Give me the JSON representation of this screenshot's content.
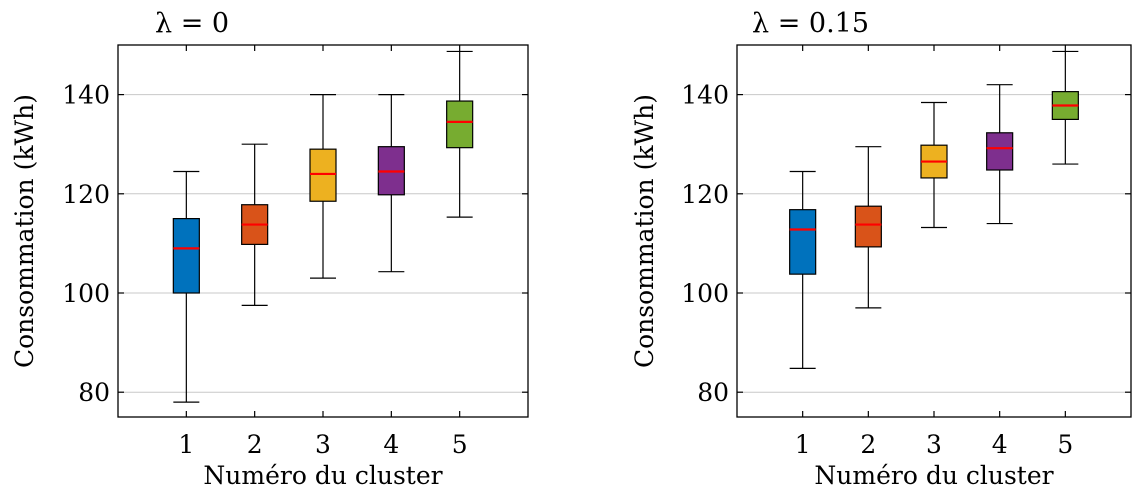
{
  "chart_data": [
    {
      "type": "box",
      "title": "λ = 0",
      "xlabel": "Numéro du cluster",
      "ylabel": "Consommation (kWh)",
      "categories": [
        "1",
        "2",
        "3",
        "4",
        "5"
      ],
      "ylim": [
        75,
        150
      ],
      "yticks": [
        80,
        100,
        120,
        140
      ],
      "grid": "horizontal",
      "colors": [
        "#0072BD",
        "#D95319",
        "#EDB120",
        "#7E2F8E",
        "#77AC30"
      ],
      "median_color": "#FF0000",
      "boxes": [
        {
          "min": 78,
          "q1": 100,
          "median": 109,
          "q3": 115,
          "max": 124.5
        },
        {
          "min": 97.5,
          "q1": 109.8,
          "median": 113.8,
          "q3": 117.8,
          "max": 130
        },
        {
          "min": 103,
          "q1": 118.5,
          "median": 124,
          "q3": 129,
          "max": 140
        },
        {
          "min": 104.3,
          "q1": 119.8,
          "median": 124.5,
          "q3": 129.5,
          "max": 140
        },
        {
          "min": 115.3,
          "q1": 129.3,
          "median": 134.5,
          "q3": 138.7,
          "max": 148.7
        }
      ]
    },
    {
      "type": "box",
      "title": "λ = 0.15",
      "xlabel": "Numéro du cluster",
      "ylabel": "Consommation (kWh)",
      "categories": [
        "1",
        "2",
        "3",
        "4",
        "5"
      ],
      "ylim": [
        75,
        150
      ],
      "yticks": [
        80,
        100,
        120,
        140
      ],
      "grid": "horizontal",
      "colors": [
        "#0072BD",
        "#D95319",
        "#EDB120",
        "#7E2F8E",
        "#77AC30"
      ],
      "median_color": "#FF0000",
      "boxes": [
        {
          "min": 84.8,
          "q1": 103.8,
          "median": 112.8,
          "q3": 116.8,
          "max": 124.5
        },
        {
          "min": 97,
          "q1": 109.3,
          "median": 113.8,
          "q3": 117.5,
          "max": 129.5
        },
        {
          "min": 113.2,
          "q1": 123.2,
          "median": 126.5,
          "q3": 129.8,
          "max": 138.4
        },
        {
          "min": 114,
          "q1": 124.8,
          "median": 129.2,
          "q3": 132.3,
          "max": 142
        },
        {
          "min": 126,
          "q1": 135,
          "median": 137.8,
          "q3": 140.6,
          "max": 148.7
        }
      ]
    }
  ]
}
